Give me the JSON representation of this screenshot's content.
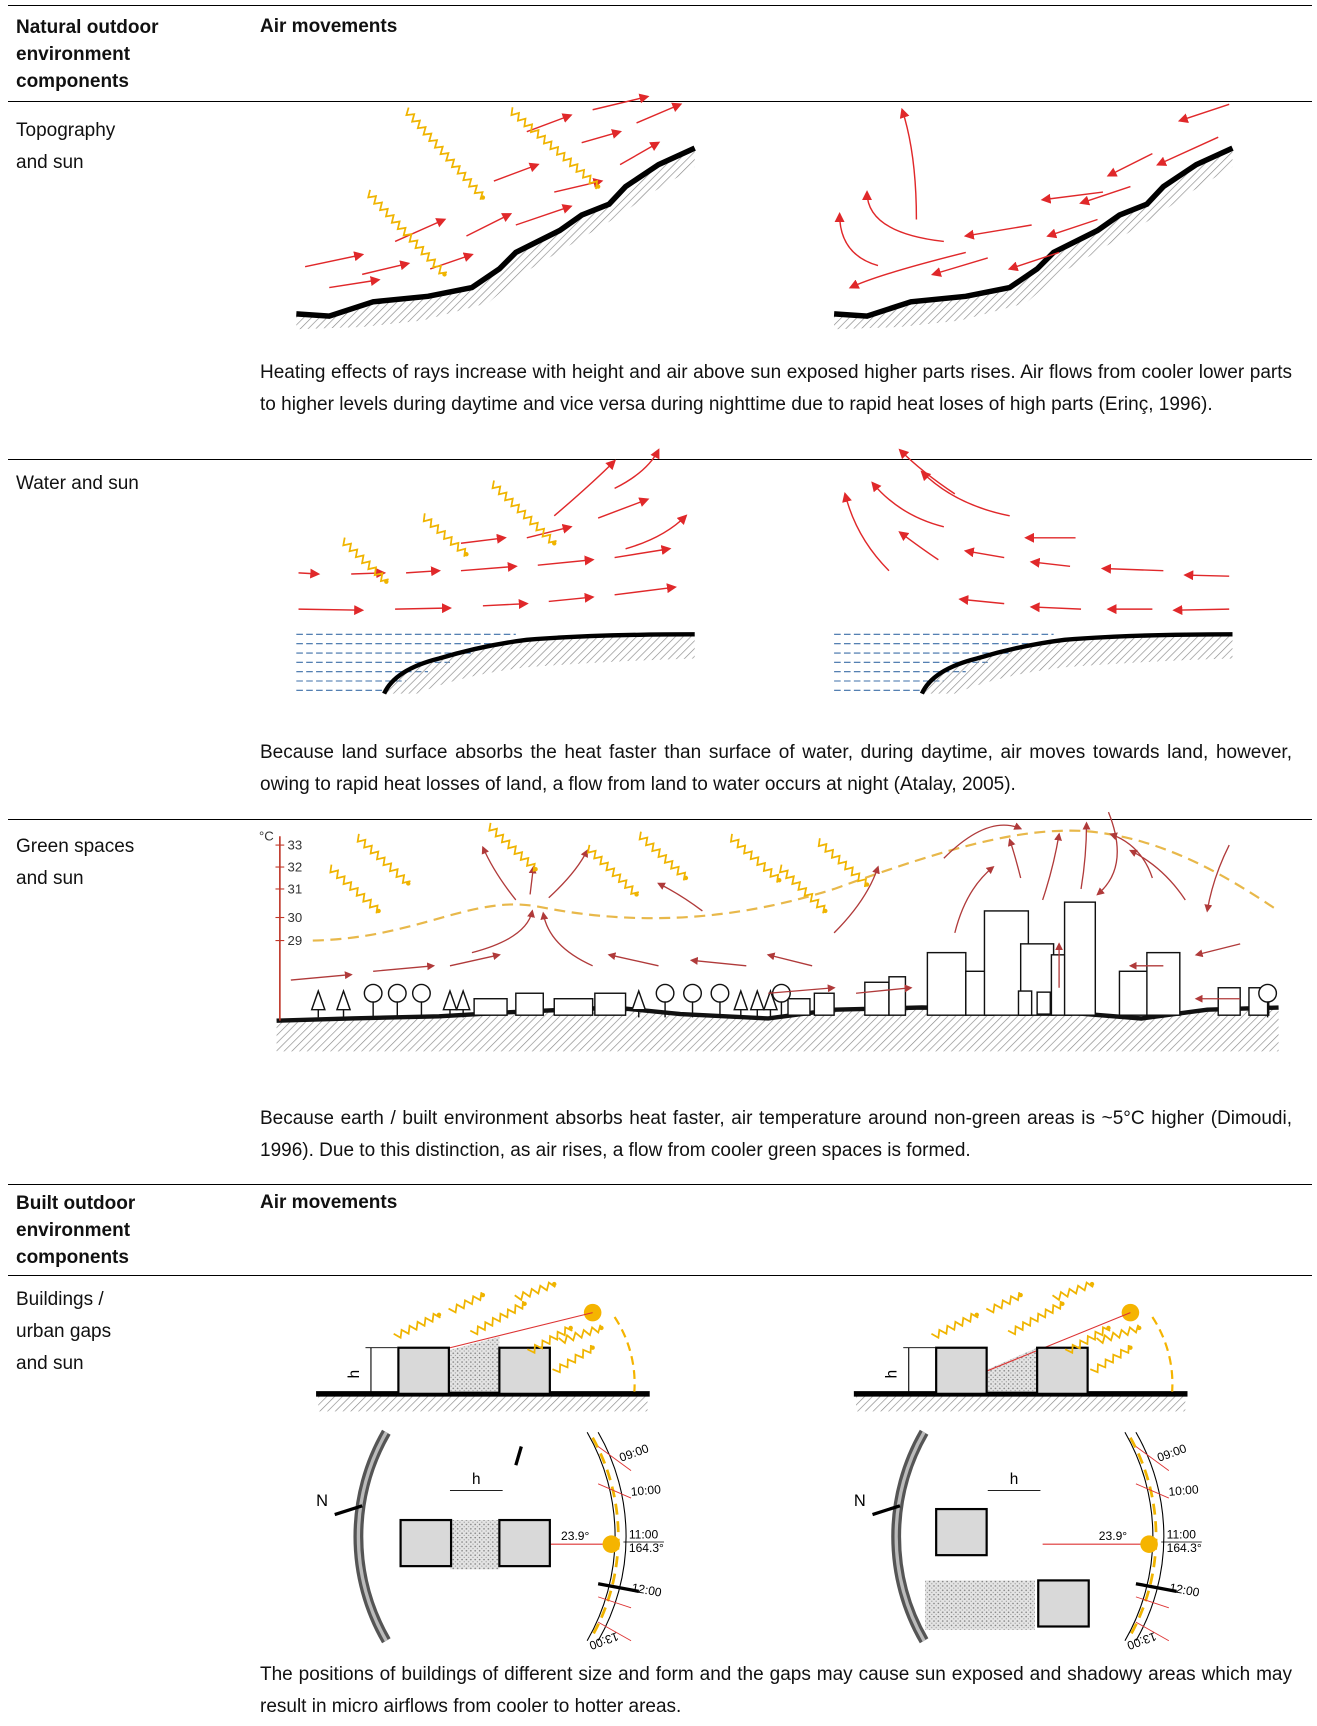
{
  "sections": [
    {
      "header": {
        "component": "Natural outdoor environment components",
        "movement": "Air movements"
      },
      "rows": [
        {
          "component": "Topography and sun",
          "description": "Heating effects of rays increase with height and air above sun exposed higher parts rises. Air flows from cooler lower parts to higher levels during daytime and vice versa during nighttime due to rapid heat loses of high parts (Erinç, 1996)."
        },
        {
          "component": "Water and sun",
          "description": "Because land surface absorbs the heat faster than surface of water, during daytime, air moves towards land, however, owing to rapid heat losses of land, a flow from land to water occurs at night (Atalay, 2005)."
        },
        {
          "component": "Green spaces and sun",
          "description": "Because earth / built environment absorbs heat faster, air temperature around non-green areas is ~5°C higher (Dimoudi, 1996). Due to this distinction, as air rises, a flow from cooler green spaces is formed.",
          "figure": {
            "unit": "°C",
            "scale": [
              "33",
              "32",
              "31",
              "30",
              "29"
            ]
          }
        }
      ]
    },
    {
      "header": {
        "component": "Built outdoor environment components",
        "movement": "Air movements"
      },
      "rows": [
        {
          "component": "Buildings / urban gaps and sun",
          "description": "The positions of buildings of different size and form and the gaps may cause sun exposed and shadowy areas which may result in micro airflows from cooler to hotter areas.",
          "figure": {
            "height_label": "h",
            "north_label": "N",
            "altitude": "23.9°",
            "azimuth": "164.3°",
            "times": [
              "09:00",
              "10:00",
              "11:00",
              "12:00",
              "13:00"
            ]
          }
        }
      ]
    }
  ]
}
